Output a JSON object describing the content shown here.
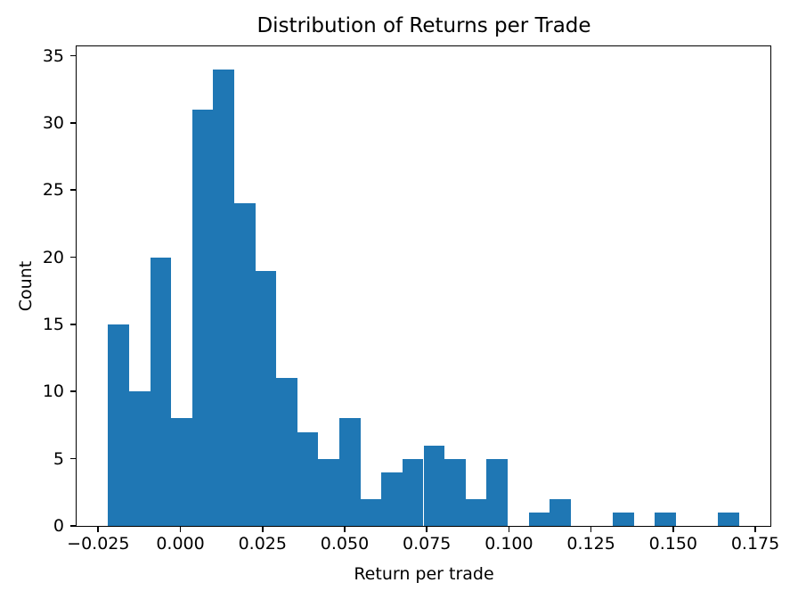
{
  "chart_data": {
    "type": "bar",
    "subtype": "histogram",
    "title": "Distribution of Returns per Trade",
    "xlabel": "Return per trade",
    "ylabel": "Count",
    "bar_color": "#1f77b4",
    "axis_color": "#000000",
    "grid": false,
    "legend": null,
    "n_bins": 30,
    "bin_start": -0.022,
    "bin_width": 0.0064,
    "bin_edges": [
      -0.022,
      -0.0156,
      -0.0092,
      -0.0028,
      0.0036,
      0.01,
      0.0164,
      0.0228,
      0.0292,
      0.0356,
      0.042,
      0.0484,
      0.0548,
      0.0612,
      0.0676,
      0.074,
      0.0804,
      0.0868,
      0.0932,
      0.0996,
      0.106,
      0.1124,
      0.1188,
      0.1252,
      0.1316,
      0.138,
      0.1444,
      0.1508,
      0.1572,
      0.1636,
      0.17
    ],
    "counts": [
      15,
      10,
      20,
      8,
      31,
      34,
      24,
      19,
      11,
      7,
      5,
      8,
      2,
      4,
      5,
      6,
      5,
      2,
      5,
      0,
      1,
      2,
      0,
      0,
      1,
      0,
      1,
      0,
      0,
      1
    ],
    "xlim": [
      -0.0316,
      0.1796
    ],
    "ylim": [
      0,
      35.7
    ],
    "x_ticks": [
      -0.025,
      0.0,
      0.025,
      0.05,
      0.075,
      0.1,
      0.125,
      0.15,
      0.175
    ],
    "x_tick_labels": [
      "−0.025",
      "0.000",
      "0.025",
      "0.050",
      "0.075",
      "0.100",
      "0.125",
      "0.150",
      "0.175"
    ],
    "y_ticks": [
      0,
      5,
      10,
      15,
      20,
      25,
      30,
      35
    ],
    "y_tick_labels": [
      "0",
      "5",
      "10",
      "15",
      "20",
      "25",
      "30",
      "35"
    ]
  }
}
